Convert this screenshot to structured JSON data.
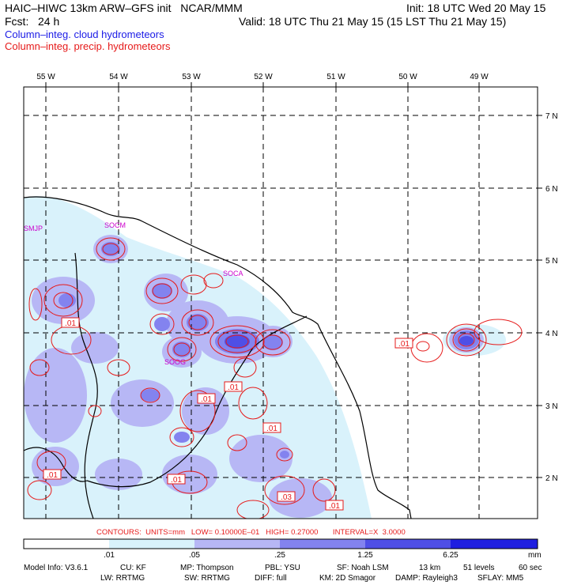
{
  "header": {
    "model_line": "HAIC–HIWC 13km ARW–GFS init   NCAR/MMM",
    "init": "Init: 18 UTC Wed 20 May 15",
    "fcst": "Fcst:   24 h",
    "valid": "Valid: 18 UTC Thu 21 May 15 (15 LST Thu 21 May 15)"
  },
  "legend": {
    "cloud": {
      "label": "Column–integ. cloud hydrometeors",
      "color": "#1a1ae6"
    },
    "precip": {
      "label": "Column–integ. precip. hydrometeors",
      "color": "#e61a1a"
    }
  },
  "map": {
    "lon_labels": [
      "55 W",
      "54 W",
      "53 W",
      "52 W",
      "51 W",
      "50 W",
      "49 W"
    ],
    "lat_labels": [
      "7 N",
      "6 N",
      "5 N",
      "4 N",
      "3 N",
      "2 N"
    ],
    "stations": [
      "SMJP",
      "SOCM",
      "SOCA",
      "SOOG"
    ],
    "contour_labels": [
      ".01",
      ".01",
      ".01",
      ".01",
      ".01",
      ".01",
      ".01",
      ".01",
      ".03",
      ".01"
    ]
  },
  "contours_line": "CONTOURS:  UNITS=mm   LOW= 0.10000E–01   HIGH= 0.27000       INTERVAL=X  3.0000",
  "colorbar": {
    "ticks": [
      ".01",
      ".05",
      ".25",
      "1.25",
      "6.25"
    ],
    "unit": "mm",
    "colors": [
      "#ffffff",
      "#d9f2fb",
      "#b7b7f5",
      "#8383ef",
      "#4f4fe6",
      "#1f1fe0"
    ]
  },
  "model_info": {
    "row1": [
      "Model Info: V3.6.1",
      "CU: KF",
      "MP: Thompson",
      "PBL: YSU",
      "SF: Noah LSM",
      "13 km",
      "51 levels",
      "60 sec"
    ],
    "row2": [
      "LW: RRTMG",
      "SW: RRTMG",
      "DIFF: full",
      "KM: 2D Smagor",
      "DAMP: Rayleigh3",
      "SFLAY: MM5"
    ]
  }
}
